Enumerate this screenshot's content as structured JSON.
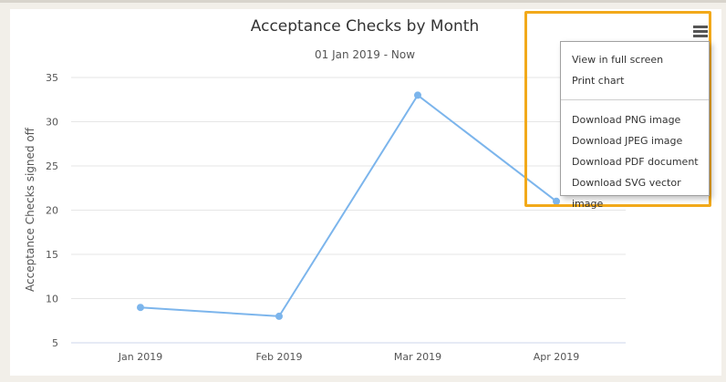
{
  "chart": {
    "title": "Acceptance Checks by Month",
    "subtitle": "01 Jan 2019 - Now",
    "y_axis_label": "Acceptance Checks signed off"
  },
  "chart_data": {
    "type": "line",
    "title": "Acceptance Checks by Month",
    "subtitle": "01 Jan 2019 - Now",
    "xlabel": "",
    "ylabel": "Acceptance Checks signed off",
    "categories": [
      "Jan 2019",
      "Feb 2019",
      "Mar 2019",
      "Apr 2019"
    ],
    "series": [
      {
        "values": [
          9,
          8,
          33,
          21
        ],
        "color": "#7cb5ec"
      }
    ],
    "yticks": [
      5,
      10,
      15,
      20,
      25,
      30,
      35
    ],
    "ylim": [
      5,
      35
    ],
    "grid": true,
    "legend": "none"
  },
  "export_menu": {
    "button_icon": "hamburger-menu-icon",
    "items_group1": [
      "View in full screen",
      "Print chart"
    ],
    "items_group2": [
      "Download PNG image",
      "Download JPEG image",
      "Download PDF document",
      "Download SVG vector image"
    ]
  },
  "colors": {
    "series": "#7cb5ec",
    "highlight": "#f2a91a",
    "grid": "#e6e6e6"
  }
}
